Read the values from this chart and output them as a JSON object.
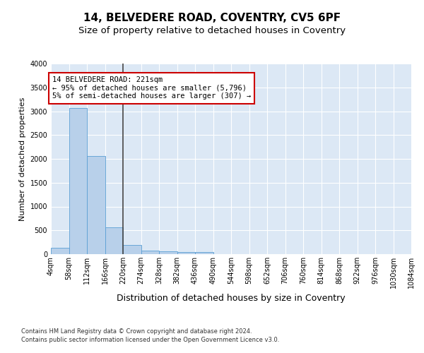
{
  "title1": "14, BELVEDERE ROAD, COVENTRY, CV5 6PF",
  "title2": "Size of property relative to detached houses in Coventry",
  "xlabel": "Distribution of detached houses by size in Coventry",
  "ylabel": "Number of detached properties",
  "bin_edges": [
    4,
    58,
    112,
    166,
    220,
    274,
    328,
    382,
    436,
    490,
    544,
    598,
    652,
    706,
    760,
    814,
    868,
    922,
    976,
    1030,
    1084
  ],
  "bar_heights": [
    130,
    3060,
    2060,
    560,
    200,
    80,
    55,
    40,
    50,
    0,
    0,
    0,
    0,
    0,
    0,
    0,
    0,
    0,
    0,
    0
  ],
  "bar_color": "#b8d0ea",
  "bar_edge_color": "#5a9fd4",
  "property_size": 221,
  "vline_color": "#444444",
  "annotation_text": "14 BELVEDERE ROAD: 221sqm\n← 95% of detached houses are smaller (5,796)\n5% of semi-detached houses are larger (307) →",
  "annotation_box_color": "white",
  "annotation_box_edge_color": "#cc0000",
  "ylim": [
    0,
    4000
  ],
  "yticks": [
    0,
    500,
    1000,
    1500,
    2000,
    2500,
    3000,
    3500,
    4000
  ],
  "background_color": "#dce8f5",
  "grid_color": "white",
  "footer_line1": "Contains HM Land Registry data © Crown copyright and database right 2024.",
  "footer_line2": "Contains public sector information licensed under the Open Government Licence v3.0.",
  "title1_fontsize": 11,
  "title2_fontsize": 9.5,
  "tick_fontsize": 7,
  "ylabel_fontsize": 8,
  "xlabel_fontsize": 9,
  "annotation_fontsize": 7.5
}
